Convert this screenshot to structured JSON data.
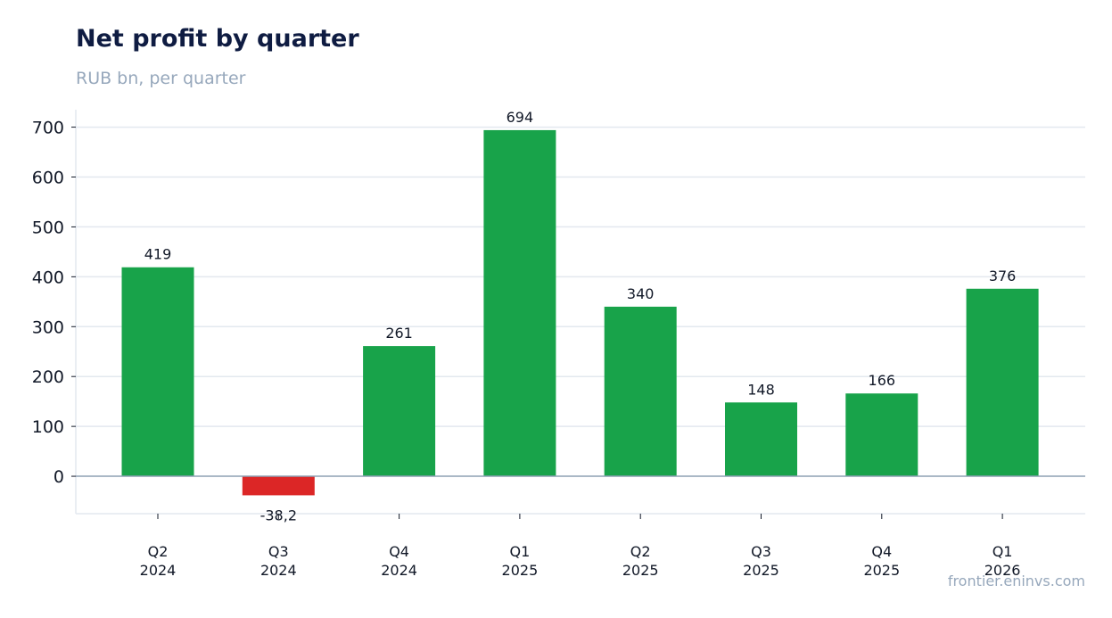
{
  "header": {
    "title": "Net profit by quarter",
    "subtitle": "RUB bn, per quarter"
  },
  "footer": {
    "source": "frontier.eninvs.com"
  },
  "colors": {
    "positive": "#18a34a",
    "negative": "#dc2626",
    "grid": "#e3e8ef",
    "zero_line": "#8da0b3",
    "text": "#111827"
  },
  "chart_data": {
    "type": "bar",
    "title": "Net profit by quarter",
    "subtitle": "RUB bn, per quarter",
    "xlabel": "",
    "ylabel": "",
    "categories": [
      [
        "Q2",
        "2024"
      ],
      [
        "Q3",
        "2024"
      ],
      [
        "Q4",
        "2024"
      ],
      [
        "Q1",
        "2025"
      ],
      [
        "Q2",
        "2025"
      ],
      [
        "Q3",
        "2025"
      ],
      [
        "Q4",
        "2025"
      ],
      [
        "Q1",
        "2026"
      ]
    ],
    "values": [
      419,
      -38.2,
      261,
      694,
      340,
      148,
      166,
      376
    ],
    "value_labels": [
      "419",
      "-38,2",
      "261",
      "694",
      "340",
      "148",
      "166",
      "376"
    ],
    "yticks": [
      0,
      100,
      200,
      300,
      400,
      500,
      600,
      700
    ],
    "ylim": [
      -75,
      735
    ],
    "grid": true,
    "legend": "none"
  }
}
